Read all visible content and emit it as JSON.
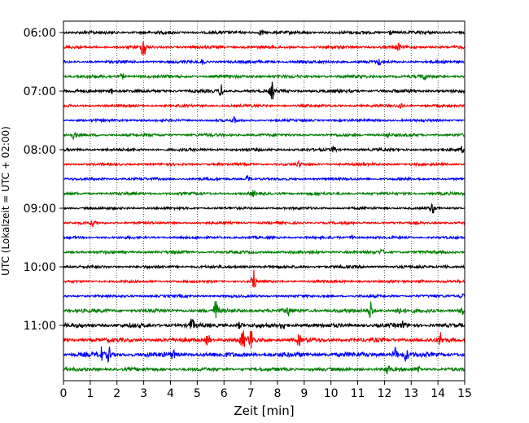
{
  "chart_data": {
    "type": "line",
    "title": "",
    "xlabel": "Zeit  [min]",
    "ylabel": "UTC (Lokalzeit = UTC + 02:00)",
    "xlim": [
      0,
      15
    ],
    "x_ticks": [
      "0",
      "1",
      "2",
      "3",
      "4",
      "5",
      "6",
      "7",
      "8",
      "9",
      "10",
      "11",
      "12",
      "13",
      "14",
      "15"
    ],
    "y_ticks": [
      "06:00",
      "07:00",
      "08:00",
      "09:00",
      "10:00",
      "11:00"
    ],
    "grid": "vertical dotted at each minute",
    "trace_interval_minutes": 15,
    "first_trace_time": "06:00",
    "colors": [
      "#000000",
      "#ff0000",
      "#0000ff",
      "#008000"
    ],
    "traces": [
      {
        "time": "06:00",
        "color": "#000000",
        "amp": 2.0,
        "events": [
          {
            "t": 7.4,
            "a": 4
          },
          {
            "t": 12.2,
            "a": 3
          }
        ]
      },
      {
        "time": "06:15",
        "color": "#ff0000",
        "amp": 1.8,
        "events": [
          {
            "t": 3.0,
            "a": 16
          },
          {
            "t": 12.5,
            "a": 5
          }
        ]
      },
      {
        "time": "06:30",
        "color": "#0000ff",
        "amp": 1.8,
        "events": [
          {
            "t": 5.2,
            "a": 3
          },
          {
            "t": 11.8,
            "a": 3
          }
        ]
      },
      {
        "time": "06:45",
        "color": "#008000",
        "amp": 2.0,
        "events": [
          {
            "t": 2.2,
            "a": 3
          },
          {
            "t": 13.5,
            "a": 3
          }
        ]
      },
      {
        "time": "07:00",
        "color": "#000000",
        "amp": 2.0,
        "events": [
          {
            "t": 1.8,
            "a": 3
          },
          {
            "t": 5.9,
            "a": 7
          },
          {
            "t": 7.8,
            "a": 10
          }
        ]
      },
      {
        "time": "07:15",
        "color": "#ff0000",
        "amp": 1.6,
        "events": [
          {
            "t": 12.6,
            "a": 4
          }
        ]
      },
      {
        "time": "07:30",
        "color": "#0000ff",
        "amp": 1.6,
        "events": [
          {
            "t": 6.4,
            "a": 3
          }
        ]
      },
      {
        "time": "07:45",
        "color": "#008000",
        "amp": 1.8,
        "events": [
          {
            "t": 0.4,
            "a": 4
          },
          {
            "t": 12.1,
            "a": 3
          }
        ]
      },
      {
        "time": "08:00",
        "color": "#000000",
        "amp": 1.8,
        "events": [
          {
            "t": 10.1,
            "a": 4
          },
          {
            "t": 14.9,
            "a": 3
          }
        ]
      },
      {
        "time": "08:15",
        "color": "#ff0000",
        "amp": 1.6,
        "events": [
          {
            "t": 8.8,
            "a": 3
          }
        ]
      },
      {
        "time": "08:30",
        "color": "#0000ff",
        "amp": 1.6,
        "events": [
          {
            "t": 6.9,
            "a": 4
          }
        ]
      },
      {
        "time": "08:45",
        "color": "#008000",
        "amp": 1.8,
        "events": [
          {
            "t": 7.1,
            "a": 3
          }
        ]
      },
      {
        "time": "09:00",
        "color": "#000000",
        "amp": 1.6,
        "events": [
          {
            "t": 13.8,
            "a": 6
          }
        ]
      },
      {
        "time": "09:15",
        "color": "#ff0000",
        "amp": 1.6,
        "events": [
          {
            "t": 1.1,
            "a": 3
          }
        ]
      },
      {
        "time": "09:30",
        "color": "#0000ff",
        "amp": 1.6,
        "events": [
          {
            "t": 10.8,
            "a": 3
          }
        ]
      },
      {
        "time": "09:45",
        "color": "#008000",
        "amp": 1.8,
        "events": [
          {
            "t": 11.9,
            "a": 3
          }
        ]
      },
      {
        "time": "10:00",
        "color": "#000000",
        "amp": 1.8,
        "events": [
          {
            "t": 14.3,
            "a": 3
          }
        ]
      },
      {
        "time": "10:15",
        "color": "#ff0000",
        "amp": 1.6,
        "events": [
          {
            "t": 7.1,
            "a": 15
          },
          {
            "t": 13.4,
            "a": 3
          }
        ]
      },
      {
        "time": "10:30",
        "color": "#0000ff",
        "amp": 1.6,
        "events": [
          {
            "t": 14.9,
            "a": 3
          }
        ]
      },
      {
        "time": "10:45",
        "color": "#008000",
        "amp": 2.4,
        "events": [
          {
            "t": 5.7,
            "a": 13
          },
          {
            "t": 8.4,
            "a": 5
          },
          {
            "t": 11.5,
            "a": 12
          },
          {
            "t": 12.5,
            "a": 6
          },
          {
            "t": 14.9,
            "a": 6
          }
        ]
      },
      {
        "time": "11:00",
        "color": "#000000",
        "amp": 2.6,
        "events": [
          {
            "t": 4.8,
            "a": 8
          },
          {
            "t": 6.6,
            "a": 4
          },
          {
            "t": 8.2,
            "a": 5
          },
          {
            "t": 12.7,
            "a": 4
          }
        ]
      },
      {
        "time": "11:15",
        "color": "#ff0000",
        "amp": 2.6,
        "events": [
          {
            "t": 5.4,
            "a": 8
          },
          {
            "t": 6.7,
            "a": 12
          },
          {
            "t": 7.0,
            "a": 14
          },
          {
            "t": 8.8,
            "a": 6
          },
          {
            "t": 14.1,
            "a": 8
          }
        ]
      },
      {
        "time": "11:30",
        "color": "#0000ff",
        "amp": 3.0,
        "events": [
          {
            "t": 1.4,
            "a": 8
          },
          {
            "t": 1.7,
            "a": 8
          },
          {
            "t": 4.1,
            "a": 5
          },
          {
            "t": 12.4,
            "a": 9
          },
          {
            "t": 12.8,
            "a": 7
          }
        ]
      },
      {
        "time": "11:45",
        "color": "#008000",
        "amp": 2.2,
        "events": [
          {
            "t": 12.1,
            "a": 7
          },
          {
            "t": 13.3,
            "a": 4
          }
        ]
      }
    ]
  }
}
